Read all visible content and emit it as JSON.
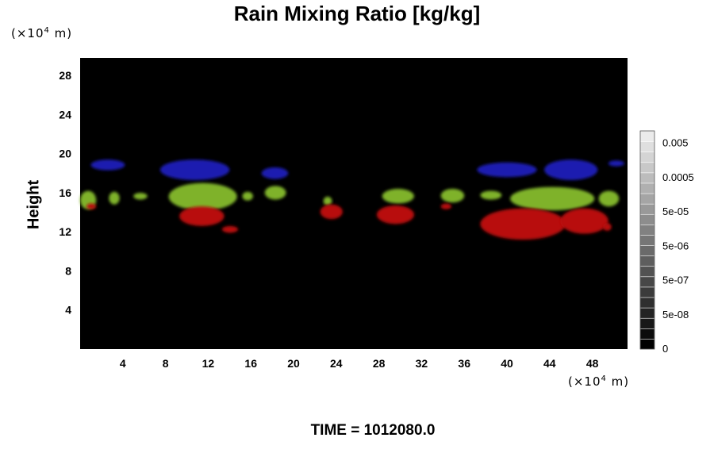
{
  "chart_data": {
    "type": "heatmap",
    "title": "Rain Mixing Ratio [kg/kg]",
    "ylabel": "Height",
    "xlabel": "",
    "x_unit": {
      "prefix": "(×10",
      "exp": "4",
      "suffix": " m)"
    },
    "y_unit": {
      "prefix": "(×10",
      "exp": "4",
      "suffix": " m)"
    },
    "x_ticks": [
      4,
      8,
      12,
      16,
      20,
      24,
      28,
      32,
      36,
      40,
      44,
      48
    ],
    "y_ticks": [
      4,
      8,
      12,
      16,
      20,
      24,
      28
    ],
    "xlim": [
      0,
      51.3
    ],
    "ylim": [
      0,
      29.8
    ],
    "background_color": "#000000",
    "colorbar": {
      "tick_labels": [
        "0",
        "5e-08",
        "5e-07",
        "5e-06",
        "5e-05",
        "0.0005",
        "0.005"
      ],
      "levels": 21
    },
    "regions": [
      {
        "color": "#1a1fb0",
        "x": [
          1.0,
          4.2
        ],
        "y": [
          18.3,
          19.4
        ]
      },
      {
        "color": "#1a1fb0",
        "x": [
          7.5,
          14.0
        ],
        "y": [
          17.3,
          19.4
        ]
      },
      {
        "color": "#1a1fb0",
        "x": [
          17.0,
          19.5
        ],
        "y": [
          17.4,
          18.6
        ]
      },
      {
        "color": "#1a1fb0",
        "x": [
          37.2,
          42.8
        ],
        "y": [
          17.6,
          19.1
        ]
      },
      {
        "color": "#1a1fb0",
        "x": [
          43.5,
          48.5
        ],
        "y": [
          17.3,
          19.4
        ]
      },
      {
        "color": "#1a1fb0",
        "x": [
          49.5,
          51.0
        ],
        "y": [
          18.7,
          19.3
        ]
      },
      {
        "color": "#7fb22a",
        "x": [
          0.0,
          1.5
        ],
        "y": [
          14.3,
          16.2
        ]
      },
      {
        "color": "#7fb22a",
        "x": [
          2.7,
          3.7
        ],
        "y": [
          14.8,
          16.1
        ]
      },
      {
        "color": "#7fb22a",
        "x": [
          5.0,
          6.3
        ],
        "y": [
          15.3,
          16.0
        ]
      },
      {
        "color": "#7fb22a",
        "x": [
          8.3,
          14.7
        ],
        "y": [
          14.2,
          17.0
        ]
      },
      {
        "color": "#7fb22a",
        "x": [
          15.2,
          16.2
        ],
        "y": [
          15.2,
          16.1
        ]
      },
      {
        "color": "#7fb22a",
        "x": [
          17.3,
          19.3
        ],
        "y": [
          15.3,
          16.7
        ]
      },
      {
        "color": "#7fb22a",
        "x": [
          22.8,
          23.6
        ],
        "y": [
          14.7,
          15.6
        ]
      },
      {
        "color": "#7fb22a",
        "x": [
          28.3,
          31.3
        ],
        "y": [
          14.9,
          16.4
        ]
      },
      {
        "color": "#7fb22a",
        "x": [
          33.8,
          36.0
        ],
        "y": [
          15.0,
          16.4
        ]
      },
      {
        "color": "#7fb22a",
        "x": [
          37.5,
          39.5
        ],
        "y": [
          15.3,
          16.2
        ]
      },
      {
        "color": "#7fb22a",
        "x": [
          40.3,
          48.2
        ],
        "y": [
          14.2,
          16.6
        ]
      },
      {
        "color": "#7fb22a",
        "x": [
          48.6,
          50.5
        ],
        "y": [
          14.6,
          16.2
        ]
      },
      {
        "color": "#b80e0e",
        "x": [
          0.6,
          1.5
        ],
        "y": [
          14.3,
          14.9
        ]
      },
      {
        "color": "#b80e0e",
        "x": [
          9.3,
          13.5
        ],
        "y": [
          12.6,
          14.6
        ]
      },
      {
        "color": "#b80e0e",
        "x": [
          13.3,
          14.8
        ],
        "y": [
          11.9,
          12.6
        ]
      },
      {
        "color": "#b80e0e",
        "x": [
          22.5,
          24.6
        ],
        "y": [
          13.3,
          14.8
        ]
      },
      {
        "color": "#b80e0e",
        "x": [
          27.8,
          31.3
        ],
        "y": [
          12.8,
          14.7
        ]
      },
      {
        "color": "#b80e0e",
        "x": [
          33.8,
          34.8
        ],
        "y": [
          14.3,
          14.9
        ]
      },
      {
        "color": "#b80e0e",
        "x": [
          37.5,
          45.5
        ],
        "y": [
          11.2,
          14.4
        ]
      },
      {
        "color": "#b80e0e",
        "x": [
          45.0,
          49.5
        ],
        "y": [
          11.8,
          14.4
        ]
      },
      {
        "color": "#b80e0e",
        "x": [
          49.0,
          49.8
        ],
        "y": [
          12.1,
          12.9
        ]
      }
    ],
    "time_label": "TIME = 1012080.0"
  }
}
